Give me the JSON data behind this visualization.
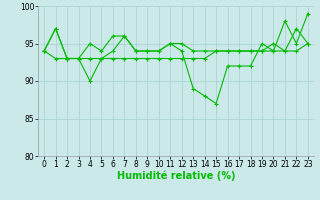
{
  "background_color": "#cce9e9",
  "grid_color": "#aad4d4",
  "line_color": "#00bb00",
  "xlabel": "Humidité relative (%)",
  "xlabel_fontsize": 7,
  "tick_fontsize": 5.5,
  "ylim": [
    80,
    100
  ],
  "yticks": [
    80,
    85,
    90,
    95,
    100
  ],
  "xlim": [
    -0.5,
    23.5
  ],
  "xticks": [
    0,
    1,
    2,
    3,
    4,
    5,
    6,
    7,
    8,
    9,
    10,
    11,
    12,
    13,
    14,
    15,
    16,
    17,
    18,
    19,
    20,
    21,
    22,
    23
  ],
  "series": [
    [
      94,
      97,
      93,
      93,
      95,
      94,
      96,
      96,
      94,
      94,
      94,
      95,
      95,
      94,
      94,
      94,
      94,
      94,
      94,
      94,
      95,
      94,
      97,
      95
    ],
    [
      94,
      97,
      93,
      93,
      90,
      93,
      94,
      96,
      94,
      94,
      94,
      95,
      94,
      89,
      88,
      87,
      92,
      92,
      92,
      95,
      94,
      98,
      95,
      99
    ],
    [
      94,
      93,
      93,
      93,
      93,
      93,
      93,
      93,
      93,
      93,
      93,
      93,
      93,
      93,
      93,
      94,
      94,
      94,
      94,
      94,
      94,
      94,
      94,
      95
    ]
  ],
  "figsize": [
    3.2,
    2.0
  ],
  "dpi": 100
}
